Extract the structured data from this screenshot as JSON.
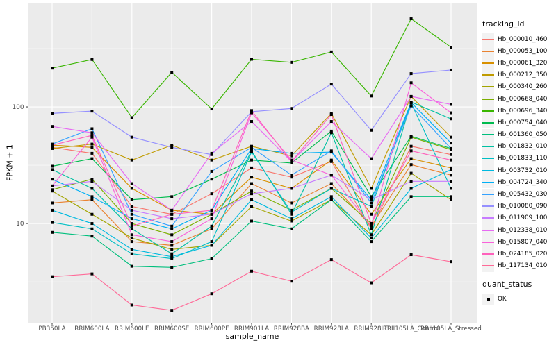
{
  "chart_data": {
    "type": "line",
    "title": "",
    "xlabel": "sample_name",
    "ylabel": "FPKM + 1",
    "y_scale": "log10",
    "ylim": [
      1.41,
      771
    ],
    "y_ticks": [
      100,
      10
    ],
    "y_minor_ticks": [
      316.23,
      31.62,
      3.16
    ],
    "grid": true,
    "legend_position": "right",
    "point_marker": "black-square",
    "x_categories": [
      "PB350LA",
      "RRIM600LA",
      "RRIM600LE",
      "RRIM600SE",
      "RRIM600PE",
      "RRIM901LA",
      "RRIM928BA",
      "RRIM928LA",
      "RRIM928LE",
      "RRII105LA_Control",
      "RRII105LA_Stressed"
    ],
    "series": [
      {
        "name": "Hb_000010_460",
        "color": "#F8766D",
        "values": [
          45,
          40,
          14,
          12,
          18,
          30,
          25,
          34,
          9,
          46,
          39
        ]
      },
      {
        "name": "Hb_000053_100",
        "color": "#EA8331",
        "values": [
          15,
          16,
          7,
          6.5,
          9,
          22,
          15,
          22,
          9.5,
          32,
          26
        ]
      },
      {
        "name": "Hb_000061_320",
        "color": "#D89000",
        "values": [
          47,
          45,
          20,
          13,
          12,
          25,
          20,
          35,
          12,
          36,
          30
        ]
      },
      {
        "name": "Hb_000212_350",
        "color": "#C09B00",
        "values": [
          44,
          48,
          35,
          47,
          35,
          46,
          38,
          88,
          20,
          123,
          55
        ]
      },
      {
        "name": "Hb_000340_260",
        "color": "#A3A500",
        "values": [
          19,
          12,
          7.5,
          6,
          6.5,
          14,
          10.5,
          16,
          8,
          27,
          16
        ]
      },
      {
        "name": "Hb_000668_040",
        "color": "#7CAE00",
        "values": [
          19.5,
          24,
          10,
          8,
          12,
          19,
          13,
          20,
          10,
          55,
          43
        ]
      },
      {
        "name": "Hb_000696_340",
        "color": "#39B600",
        "values": [
          215,
          255,
          81,
          198,
          96,
          256,
          241,
          296,
          124,
          570,
          325
        ]
      },
      {
        "name": "Hb_000754_040",
        "color": "#00BB4E",
        "values": [
          31,
          36,
          16,
          17,
          24,
          35,
          33,
          62,
          17,
          56,
          44
        ]
      },
      {
        "name": "Hb_001360_050",
        "color": "#00BF7D",
        "values": [
          8.4,
          7.8,
          4.3,
          4.2,
          5,
          10.5,
          9,
          16,
          7,
          17,
          17
        ]
      },
      {
        "name": "Hb_001832_010",
        "color": "#00C1A3",
        "values": [
          29,
          20,
          9,
          5.5,
          9.5,
          42,
          12,
          60,
          8,
          110,
          79
        ]
      },
      {
        "name": "Hb_001833_110",
        "color": "#00BFC4",
        "values": [
          10.2,
          9,
          5.5,
          5,
          7,
          41,
          12.5,
          20,
          14,
          108,
          20
        ]
      },
      {
        "name": "Hb_003732_010",
        "color": "#00BAE0",
        "values": [
          13,
          10,
          6,
          5.2,
          6.5,
          16,
          11,
          17,
          7.5,
          20,
          29
        ]
      },
      {
        "name": "Hb_004724_340",
        "color": "#00B0F6",
        "values": [
          24,
          17,
          11,
          9,
          13,
          44,
          40,
          41,
          16,
          109,
          49
        ]
      },
      {
        "name": "Hb_005432_030",
        "color": "#35A2FF",
        "values": [
          48,
          65,
          12,
          9.5,
          28,
          45,
          26,
          42,
          15,
          102,
          44
        ]
      },
      {
        "name": "Hb_010080_090",
        "color": "#9590FF",
        "values": [
          88,
          92,
          55,
          45,
          39,
          91,
          97,
          157,
          63,
          193,
          207
        ]
      },
      {
        "name": "Hb_011909_100",
        "color": "#C77CFF",
        "values": [
          21,
          23,
          13,
          11,
          12,
          18,
          20,
          26,
          16,
          23,
          23
        ]
      },
      {
        "name": "Hb_012338_010",
        "color": "#E76BF3",
        "values": [
          68,
          60,
          22,
          13,
          40,
          75,
          34,
          75,
          36,
          123,
          105
        ]
      },
      {
        "name": "Hb_015807_040",
        "color": "#FA62DB",
        "values": [
          21,
          55,
          8,
          7,
          11,
          89,
          35,
          26,
          9.5,
          161,
          89
        ]
      },
      {
        "name": "Hb_024185_020",
        "color": "#FF62BC",
        "values": [
          47,
          57,
          9.5,
          12,
          13,
          93,
          34,
          86,
          10,
          42,
          35
        ]
      },
      {
        "name": "Hb_117134_010",
        "color": "#FF6A98",
        "values": [
          3.5,
          3.7,
          2,
          1.8,
          2.5,
          3.9,
          3.2,
          4.9,
          3.1,
          5.4,
          4.7
        ]
      }
    ]
  },
  "legend": {
    "tracking_title": "tracking_id",
    "quant_title": "quant_status",
    "quant_items": [
      {
        "label": "OK"
      }
    ]
  },
  "colors": {
    "panel_bg": "#EBEBEB",
    "grid": "#FFFFFF",
    "axis_text": "#4D4D4D",
    "tick": "#333333",
    "point": "#000000",
    "legend_key_bg": "#F2F2F2"
  }
}
